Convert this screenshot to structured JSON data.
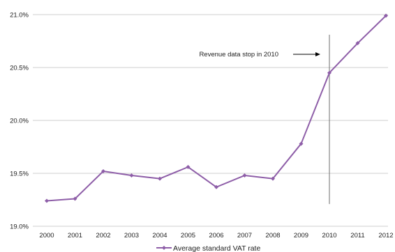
{
  "chart_data": {
    "type": "line",
    "title": "",
    "xlabel": "",
    "ylabel": "",
    "categories": [
      "2000",
      "2001",
      "2002",
      "2003",
      "2004",
      "2005",
      "2006",
      "2007",
      "2008",
      "2009",
      "2010",
      "2011",
      "2012"
    ],
    "series": [
      {
        "name": "Average standard VAT rate",
        "color": "#8e5ea8",
        "marker": "diamond",
        "values": [
          19.24,
          19.26,
          19.52,
          19.48,
          19.45,
          19.56,
          19.37,
          19.48,
          19.45,
          19.78,
          20.45,
          20.73,
          20.99
        ]
      }
    ],
    "ylim": [
      19.0,
      21.0
    ],
    "yticks": [
      19.0,
      19.5,
      20.0,
      20.5,
      21.0
    ],
    "ytick_labels": [
      "19.0%",
      "19.5%",
      "20.0%",
      "20.5%",
      "21.0%"
    ],
    "grid": true,
    "legend": {
      "position": "bottom-center"
    },
    "annotation": {
      "text": "Revenue data stop in 2010",
      "arrow": "right",
      "vline_at": "2010",
      "vline_range": [
        19.21,
        20.81
      ]
    }
  }
}
